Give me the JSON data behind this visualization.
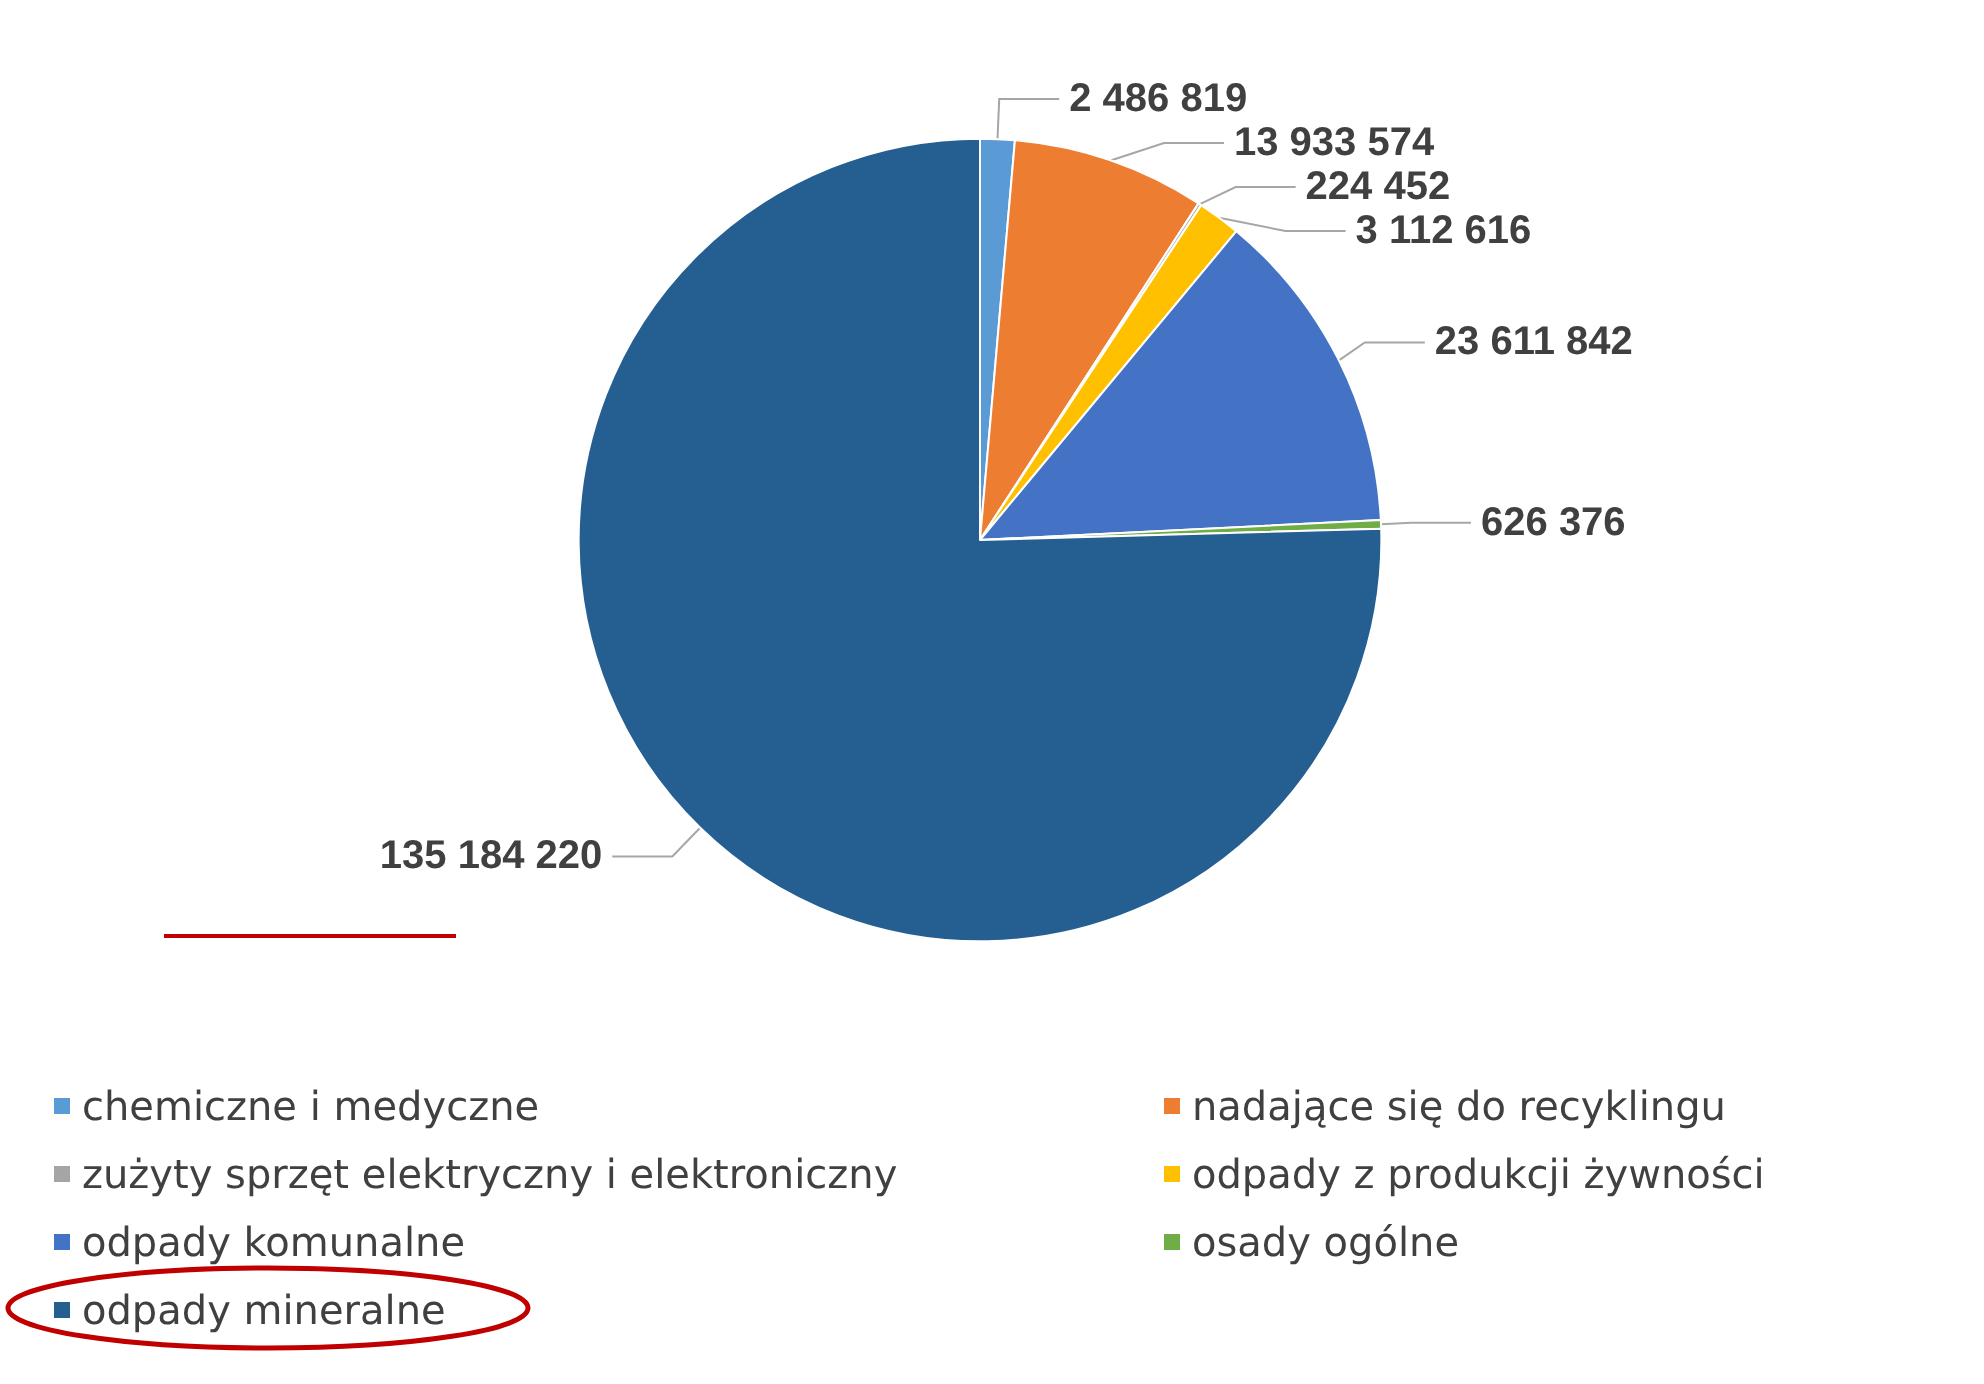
{
  "chart_data": {
    "type": "pie",
    "categories": [
      "chemiczne i medyczne",
      "nadające się do recyklingu",
      "zużyty sprzęt elektryczny i elektroniczny",
      "odpady z produkcji żywności",
      "odpady komunalne",
      "osady ogólne",
      "odpady mineralne"
    ],
    "values": [
      2486819,
      13933574,
      224452,
      3112616,
      23611842,
      626376,
      135184220
    ],
    "value_labels": [
      "2 486 819",
      "13 933 574",
      "224 452",
      "3 112 616",
      "23 611 842",
      "626 376",
      "135 184 220"
    ],
    "colors": [
      "#5b9bd5",
      "#ed7d31",
      "#a5a5a5",
      "#ffc000",
      "#4472c4",
      "#70ad47",
      "#255e91"
    ],
    "legend": "bottom"
  }
}
